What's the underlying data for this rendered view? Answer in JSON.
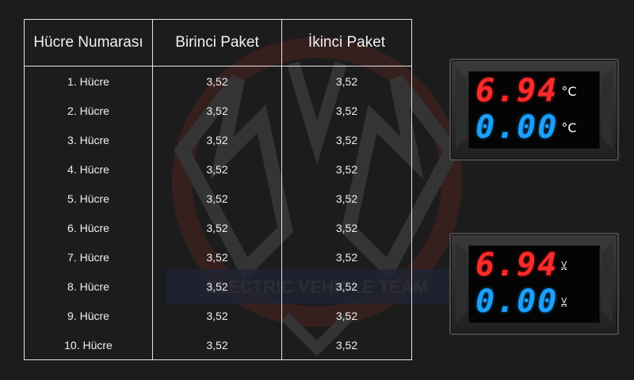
{
  "table": {
    "headers": [
      "Hücre Numarası",
      "Birinci Paket",
      "İkinci Paket"
    ],
    "rows": [
      {
        "cell": "1. Hücre",
        "pack1": "3,52",
        "pack2": "3,52"
      },
      {
        "cell": "2. Hücre",
        "pack1": "3,52",
        "pack2": "3,52"
      },
      {
        "cell": "3. Hücre",
        "pack1": "3,52",
        "pack2": "3,52"
      },
      {
        "cell": "4. Hücre",
        "pack1": "3,52",
        "pack2": "3,52"
      },
      {
        "cell": "5. Hücre",
        "pack1": "3,52",
        "pack2": "3,52"
      },
      {
        "cell": "6. Hücre",
        "pack1": "3,52",
        "pack2": "3,52"
      },
      {
        "cell": "7. Hücre",
        "pack1": "3,52",
        "pack2": "3,52"
      },
      {
        "cell": "8. Hücre",
        "pack1": "3,52",
        "pack2": "3,52"
      },
      {
        "cell": "9. Hücre",
        "pack1": "3,52",
        "pack2": "3,52"
      },
      {
        "cell": "10. Hücre",
        "pack1": "3,52",
        "pack2": "3,52"
      }
    ]
  },
  "meters": [
    {
      "top_value": "6.94",
      "top_unit": "°C",
      "bottom_value": "0.00",
      "bottom_unit": "°C"
    },
    {
      "top_value": "6.94",
      "top_unit": "V",
      "bottom_value": "0.00",
      "bottom_unit": "V"
    }
  ],
  "watermark": {
    "text": "ELECTRIC VEHICLE TEAM"
  },
  "colors": {
    "background": "#1c1c1c",
    "table_border": "#e6e6e6",
    "meter_red": "#ff2a2a",
    "meter_blue": "#1aa0ff"
  }
}
